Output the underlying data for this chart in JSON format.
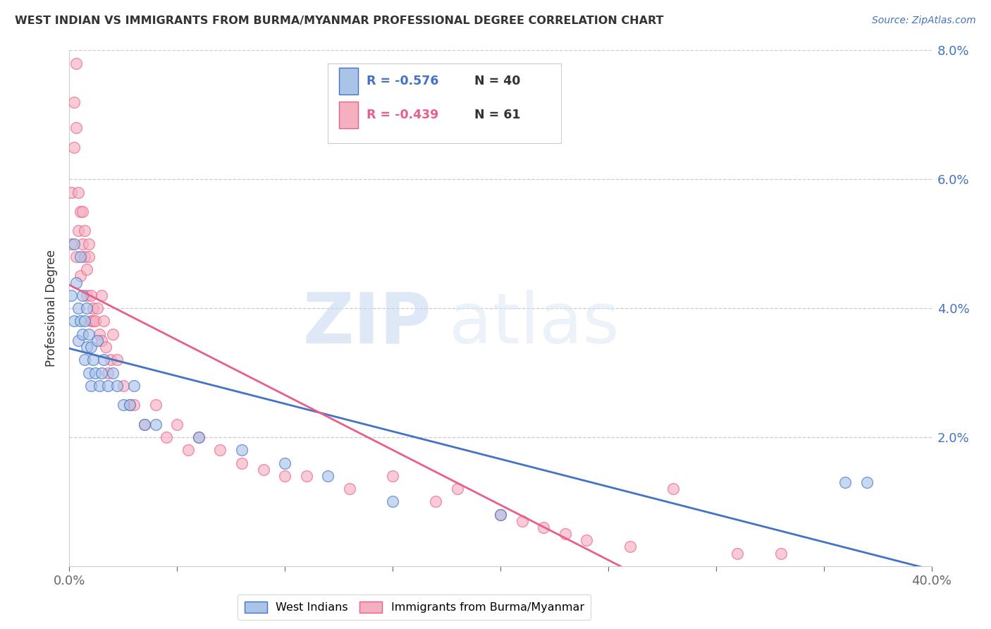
{
  "title": "WEST INDIAN VS IMMIGRANTS FROM BURMA/MYANMAR PROFESSIONAL DEGREE CORRELATION CHART",
  "source": "Source: ZipAtlas.com",
  "ylabel": "Professional Degree",
  "series1_label": "West Indians",
  "series2_label": "Immigrants from Burma/Myanmar",
  "series1_color": "#aac4e8",
  "series2_color": "#f5b0c0",
  "series1_line_color": "#4472c4",
  "series2_line_color": "#e8608a",
  "legend_r1": "R = -0.576",
  "legend_n1": "N = 40",
  "legend_r2": "R = -0.439",
  "legend_n2": "N = 61",
  "xmin": 0.0,
  "xmax": 0.4,
  "ymin": 0.0,
  "ymax": 0.08,
  "ytick_vals": [
    0.0,
    0.02,
    0.04,
    0.06,
    0.08
  ],
  "watermark_zip": "ZIP",
  "watermark_atlas": "atlas",
  "west_indians_x": [
    0.001,
    0.002,
    0.002,
    0.003,
    0.004,
    0.004,
    0.005,
    0.005,
    0.006,
    0.006,
    0.007,
    0.007,
    0.008,
    0.008,
    0.009,
    0.009,
    0.01,
    0.01,
    0.011,
    0.012,
    0.013,
    0.014,
    0.015,
    0.016,
    0.018,
    0.02,
    0.022,
    0.025,
    0.028,
    0.03,
    0.035,
    0.04,
    0.06,
    0.08,
    0.1,
    0.12,
    0.15,
    0.2,
    0.36,
    0.37
  ],
  "west_indians_y": [
    0.042,
    0.038,
    0.05,
    0.044,
    0.04,
    0.035,
    0.048,
    0.038,
    0.042,
    0.036,
    0.038,
    0.032,
    0.04,
    0.034,
    0.036,
    0.03,
    0.034,
    0.028,
    0.032,
    0.03,
    0.035,
    0.028,
    0.03,
    0.032,
    0.028,
    0.03,
    0.028,
    0.025,
    0.025,
    0.028,
    0.022,
    0.022,
    0.02,
    0.018,
    0.016,
    0.014,
    0.01,
    0.008,
    0.013,
    0.013
  ],
  "burma_x": [
    0.001,
    0.001,
    0.002,
    0.002,
    0.003,
    0.003,
    0.003,
    0.004,
    0.004,
    0.005,
    0.005,
    0.006,
    0.006,
    0.007,
    0.007,
    0.008,
    0.008,
    0.009,
    0.009,
    0.01,
    0.01,
    0.011,
    0.011,
    0.012,
    0.013,
    0.014,
    0.015,
    0.015,
    0.016,
    0.017,
    0.018,
    0.019,
    0.02,
    0.022,
    0.025,
    0.028,
    0.03,
    0.035,
    0.04,
    0.045,
    0.05,
    0.055,
    0.06,
    0.07,
    0.08,
    0.09,
    0.1,
    0.11,
    0.13,
    0.15,
    0.17,
    0.18,
    0.2,
    0.21,
    0.22,
    0.23,
    0.24,
    0.26,
    0.28,
    0.31,
    0.33
  ],
  "burma_y": [
    0.058,
    0.05,
    0.072,
    0.065,
    0.068,
    0.078,
    0.048,
    0.052,
    0.058,
    0.055,
    0.045,
    0.055,
    0.05,
    0.048,
    0.052,
    0.046,
    0.042,
    0.048,
    0.05,
    0.042,
    0.038,
    0.038,
    0.04,
    0.038,
    0.04,
    0.036,
    0.035,
    0.042,
    0.038,
    0.034,
    0.03,
    0.032,
    0.036,
    0.032,
    0.028,
    0.025,
    0.025,
    0.022,
    0.025,
    0.02,
    0.022,
    0.018,
    0.02,
    0.018,
    0.016,
    0.015,
    0.014,
    0.014,
    0.012,
    0.014,
    0.01,
    0.012,
    0.008,
    0.007,
    0.006,
    0.005,
    0.004,
    0.003,
    0.012,
    0.002,
    0.002
  ]
}
